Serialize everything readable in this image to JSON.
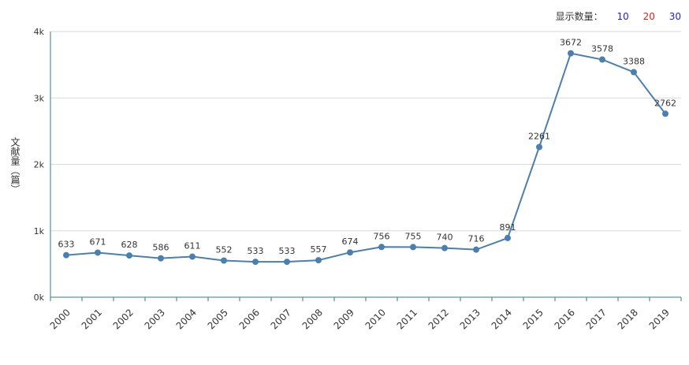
{
  "controls": {
    "label": "显示数量：",
    "options": [
      {
        "label": "10",
        "color": "#2222dd"
      },
      {
        "label": "20",
        "color": "#dd2222"
      },
      {
        "label": "30",
        "color": "#2222dd"
      }
    ]
  },
  "chart_data": {
    "type": "line",
    "title": "",
    "xlabel": "",
    "ylabel": "文献量（篇）",
    "x": [
      "2000",
      "2001",
      "2002",
      "2003",
      "2004",
      "2005",
      "2006",
      "2007",
      "2008",
      "2009",
      "2010",
      "2011",
      "2012",
      "2013",
      "2014",
      "2015",
      "2016",
      "2017",
      "2018",
      "2019"
    ],
    "series": [
      {
        "values": [
          633,
          671,
          628,
          586,
          611,
          552,
          533,
          533,
          557,
          674,
          756,
          755,
          740,
          716,
          891,
          2261,
          3672,
          3578,
          3388,
          2762
        ]
      }
    ],
    "data_labels": [
      "633",
      "671",
      "628",
      "586",
      "611",
      "552",
      "533",
      "533",
      "557",
      "674",
      "756",
      "755",
      "740",
      "716",
      "891",
      "2261",
      "3672",
      "3578",
      "3388",
      "2762"
    ],
    "ylim": [
      0,
      4000
    ],
    "yticks": [
      0,
      1000,
      2000,
      3000,
      4000
    ],
    "ytick_labels": [
      "0k",
      "1k",
      "2k",
      "3k",
      "4k"
    ],
    "grid": true,
    "legend": "none",
    "line_color": "#4a7fb0",
    "grid_color": "#d9d9d9",
    "axis_color": "#2f7f86"
  }
}
